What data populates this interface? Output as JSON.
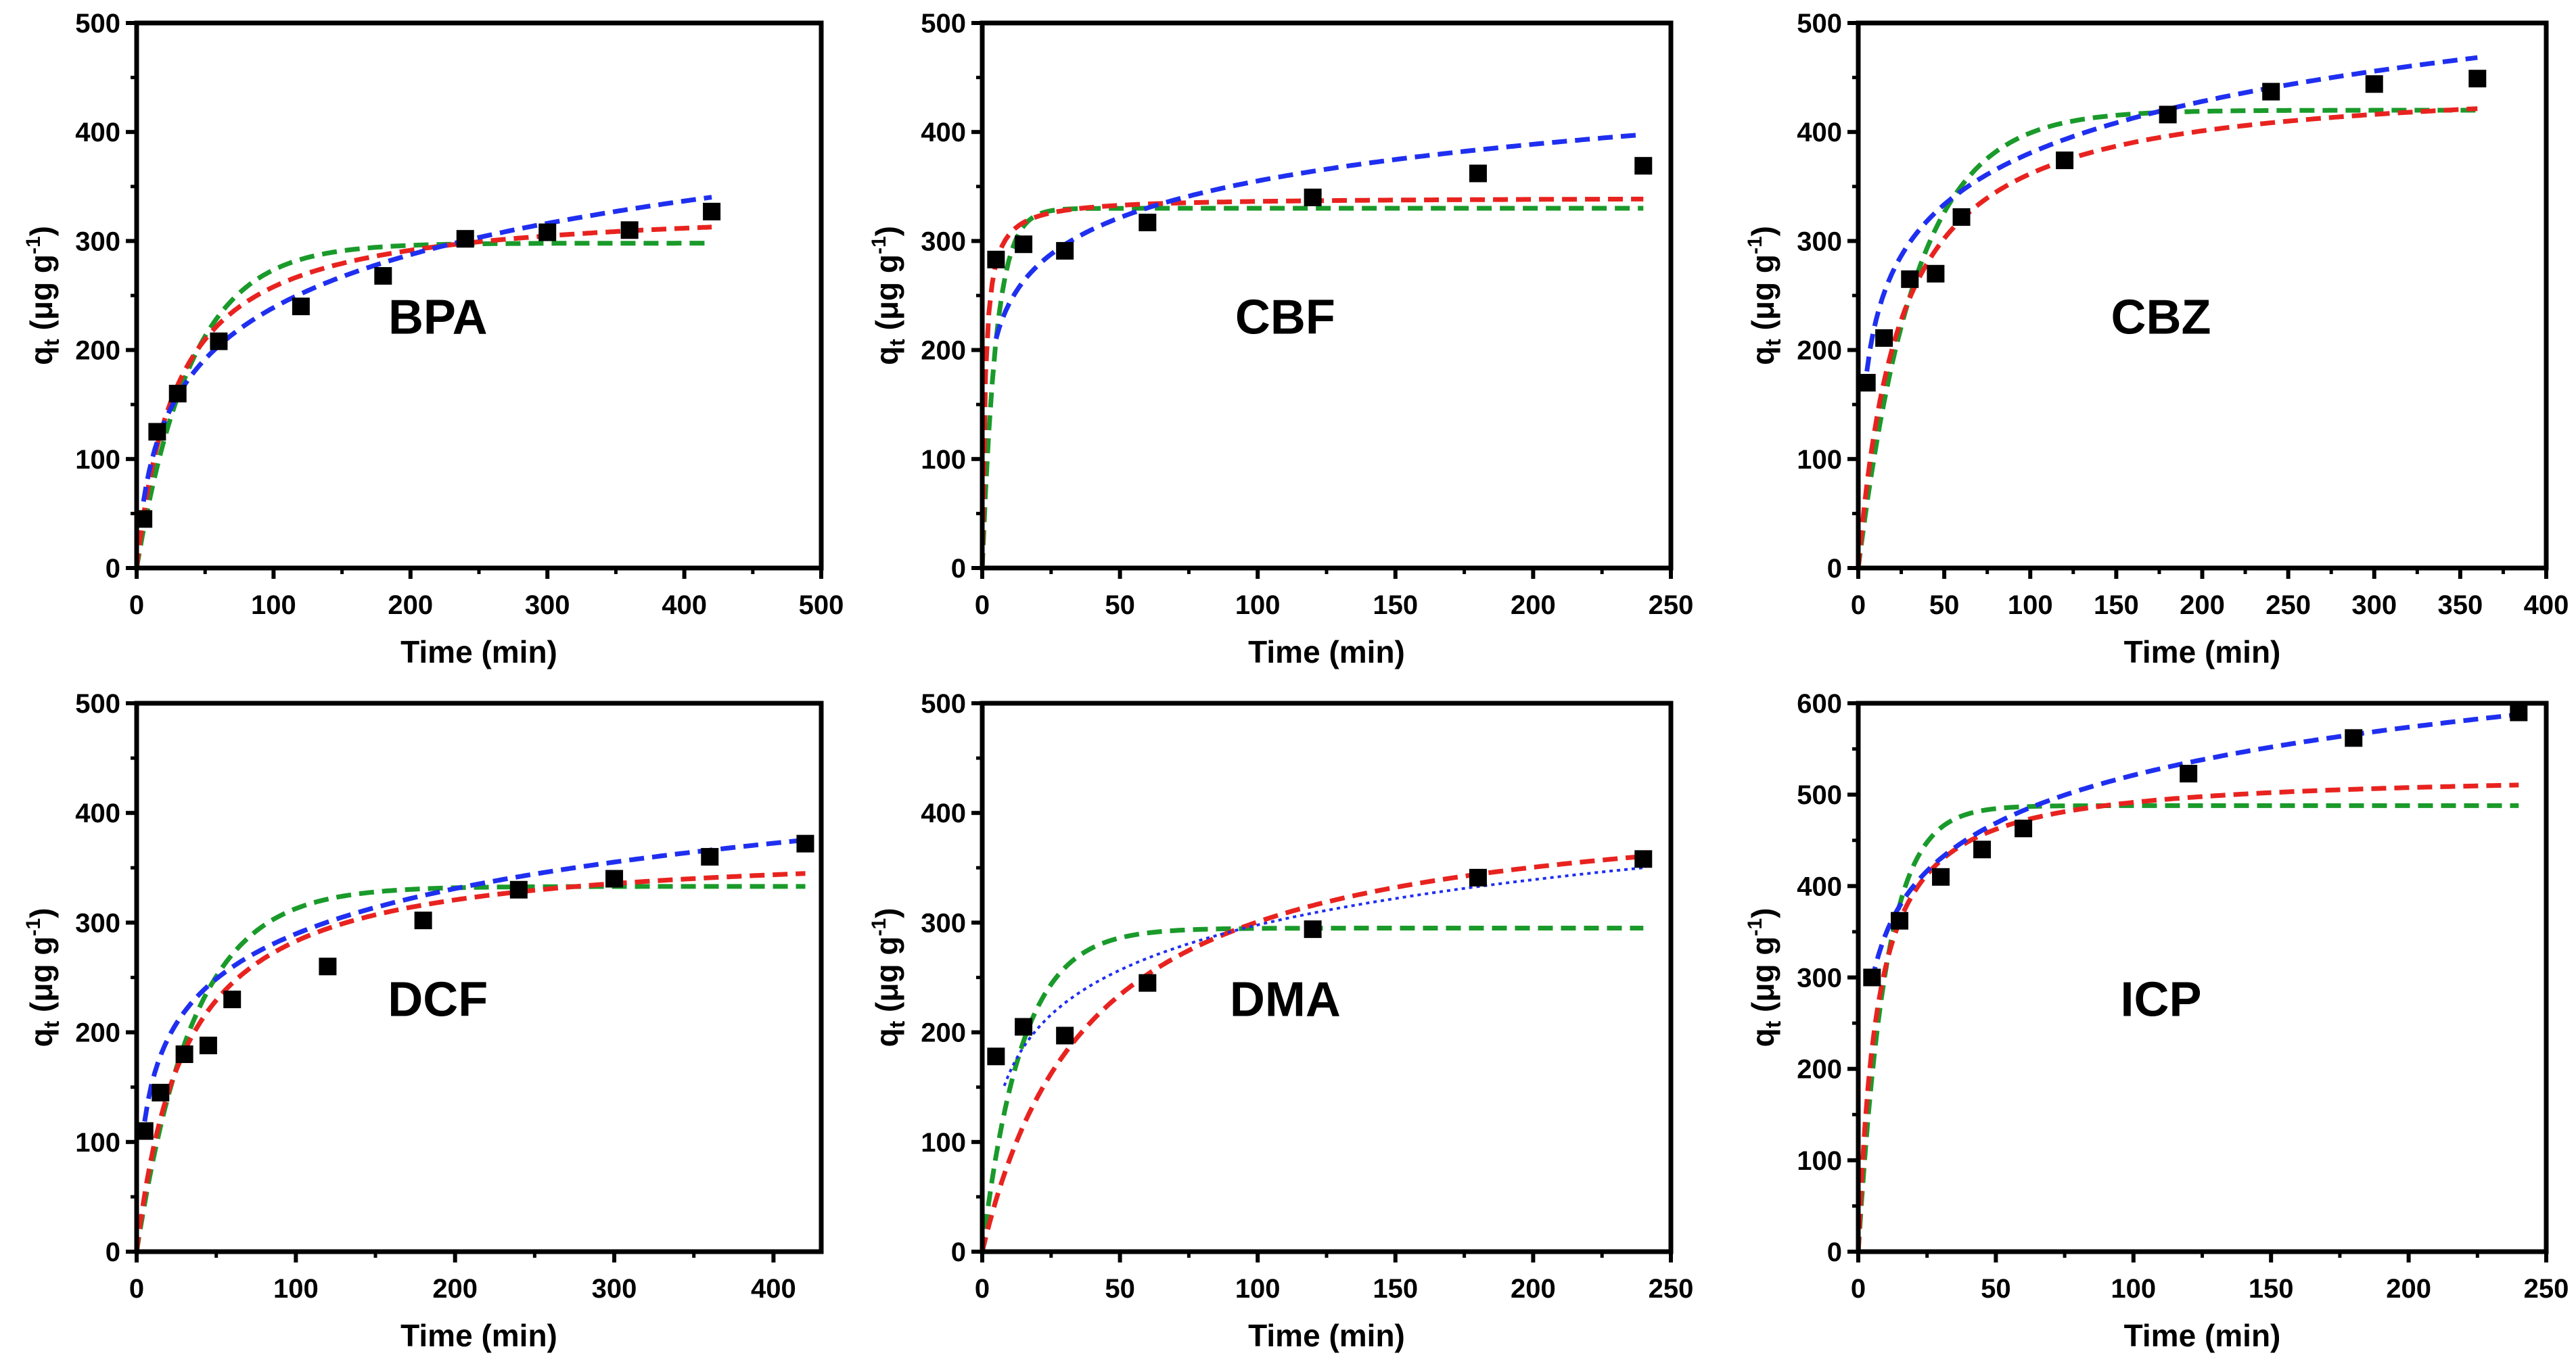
{
  "colors": {
    "data": "#000000",
    "pfo": "#1a9a2a",
    "pso": "#e8231f",
    "elovich": "#1f2ff0",
    "axis": "#000000"
  },
  "chart_data": [
    {
      "type": "scatter",
      "title": "BPA",
      "xlabel": "Time (min)",
      "ylabel": "q",
      "ylabel_sub": "t",
      "ylabel_unit": " (μg g",
      "ylabel_sup": "-1",
      "ylabel_close": ")",
      "xlim": [
        0,
        500
      ],
      "ylim": [
        0,
        500
      ],
      "xticks": [
        "0",
        "100",
        "200",
        "300",
        "400",
        "500"
      ],
      "yticks": [
        "0",
        "100",
        "200",
        "300",
        "400",
        "500"
      ],
      "x": [
        5,
        15,
        30,
        60,
        120,
        180,
        240,
        300,
        360,
        420
      ],
      "y": [
        45,
        125,
        160,
        208,
        240,
        268,
        302,
        308,
        310,
        327
      ],
      "fits": {
        "pfo": {
          "qe": 298,
          "k": 0.025,
          "tmax": 420
        },
        "pso": {
          "qe": 335,
          "k": 0.0001,
          "tmax": 420
        },
        "elovich": {
          "a": 19.2,
          "b": 0.0139,
          "tmin": 5,
          "tmax": 420
        }
      }
    },
    {
      "type": "scatter",
      "title": "CBF",
      "xlabel": "Time (min)",
      "ylabel": "q",
      "ylabel_sub": "t",
      "ylabel_unit": " (μg g",
      "ylabel_sup": "-1",
      "ylabel_close": ")",
      "xlim": [
        0,
        250
      ],
      "ylim": [
        0,
        500
      ],
      "xticks": [
        "0",
        "50",
        "100",
        "150",
        "200",
        "250"
      ],
      "yticks": [
        "0",
        "100",
        "200",
        "300",
        "400",
        "500"
      ],
      "x": [
        5,
        15,
        30,
        60,
        120,
        180,
        240
      ],
      "y": [
        283,
        297,
        291,
        317,
        340,
        362,
        369
      ],
      "fits": {
        "pfo": {
          "qe": 330,
          "k": 0.2,
          "tmax": 240
        },
        "pso": {
          "qe": 340,
          "k": 0.0027,
          "tmax": 240
        },
        "elovich": {
          "a": 729,
          "b": 0.0206,
          "tmin": 5,
          "tmax": 240
        }
      }
    },
    {
      "type": "scatter",
      "title": "CBZ",
      "xlabel": "Time (min)",
      "ylabel": "q",
      "ylabel_sub": "t",
      "ylabel_unit": " (μg g",
      "ylabel_sup": "-1",
      "ylabel_close": ")",
      "xlim": [
        0,
        400
      ],
      "ylim": [
        0,
        500
      ],
      "xticks": [
        "0",
        "50",
        "100",
        "150",
        "200",
        "250",
        "300",
        "350",
        "400"
      ],
      "yticks": [
        "0",
        "100",
        "200",
        "300",
        "400",
        "500"
      ],
      "x": [
        5,
        15,
        30,
        45,
        60,
        120,
        180,
        240,
        300,
        360
      ],
      "y": [
        170,
        211,
        265,
        270,
        322,
        374,
        416,
        437,
        444,
        449
      ],
      "fits": {
        "pfo": {
          "qe": 420,
          "k": 0.03,
          "tmax": 360
        },
        "pso": {
          "qe": 450,
          "k": 9.1e-05,
          "tmax": 360
        },
        "elovich": {
          "a": 177,
          "b": 0.0146,
          "tmin": 5,
          "tmax": 360
        }
      }
    },
    {
      "type": "scatter",
      "title": "DCF",
      "xlabel": "Time (min)",
      "ylabel": "q",
      "ylabel_sub": "t",
      "ylabel_unit": " (μg g",
      "ylabel_sup": "-1",
      "ylabel_close": ")",
      "xlim": [
        0,
        430
      ],
      "ylim": [
        0,
        500
      ],
      "xticks": [
        "0",
        "100",
        "200",
        "300",
        "400"
      ],
      "yticks": [
        "0",
        "100",
        "200",
        "300",
        "400",
        "500"
      ],
      "x": [
        5,
        15,
        30,
        45,
        60,
        120,
        180,
        240,
        300,
        360,
        420
      ],
      "y": [
        110,
        145,
        180,
        188,
        230,
        260,
        302,
        330,
        340,
        360,
        372
      ],
      "fits": {
        "pfo": {
          "qe": 333,
          "k": 0.028,
          "tmax": 420
        },
        "pso": {
          "qe": 370,
          "k": 8.8e-05,
          "tmax": 420
        },
        "elovich": {
          "a": 75,
          "b": 0.0167,
          "tmin": 5,
          "tmax": 420
        }
      }
    },
    {
      "type": "scatter",
      "title": "DMA",
      "xlabel": "Time (min)",
      "ylabel": "q",
      "ylabel_sub": "t",
      "ylabel_unit": " (μg g",
      "ylabel_sup": "-1",
      "ylabel_close": ")",
      "xlim": [
        0,
        250
      ],
      "ylim": [
        0,
        500
      ],
      "xticks": [
        "0",
        "50",
        "100",
        "150",
        "200",
        "250"
      ],
      "yticks": [
        "0",
        "100",
        "200",
        "300",
        "400",
        "500"
      ],
      "x": [
        5,
        15,
        30,
        60,
        120,
        180,
        240
      ],
      "y": [
        178,
        205,
        197,
        245,
        294,
        341,
        358
      ],
      "fits": {
        "pfo": {
          "qe": 295,
          "k": 0.07,
          "tmax": 240
        },
        "pso": {
          "qe": 420,
          "k": 6e-05,
          "tmax": 240
        },
        "elovich": {
          "a": 86,
          "b": 0.0167,
          "tmin": 8,
          "tmax": 240,
          "style": "dotted"
        }
      }
    },
    {
      "type": "scatter",
      "title": "ICP",
      "xlabel": "Time (min)",
      "ylabel": "q",
      "ylabel_sub": "t",
      "ylabel_unit": " (μg g",
      "ylabel_sup": "-1",
      "ylabel_close": ")",
      "xlim": [
        0,
        250
      ],
      "ylim": [
        0,
        600
      ],
      "xticks": [
        "0",
        "50",
        "100",
        "150",
        "200",
        "250"
      ],
      "yticks": [
        "0",
        "100",
        "200",
        "300",
        "400",
        "500",
        "600"
      ],
      "x": [
        5,
        15,
        30,
        45,
        60,
        120,
        180,
        240
      ],
      "y": [
        300,
        362,
        410,
        440,
        463,
        523,
        562,
        590
      ],
      "fits": {
        "pfo": {
          "qe": 488,
          "k": 0.1,
          "tmax": 240
        },
        "pso": {
          "qe": 525,
          "k": 0.00028,
          "tmax": 240
        },
        "elovich": {
          "a": 737,
          "b": 0.0132,
          "tmin": 5,
          "tmax": 240
        }
      }
    }
  ]
}
